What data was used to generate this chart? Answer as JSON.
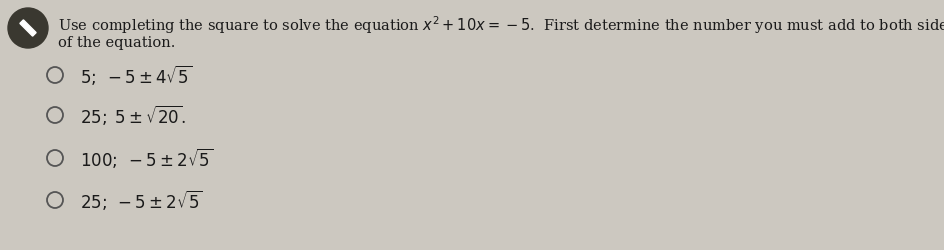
{
  "bg_color": "#ccc8c0",
  "text_color": "#1a1a1a",
  "title_line1": "Use completing the square to solve the equation $x^2 + 10x = -5$.  First determine the number you must add to both sides",
  "title_line2": "of the equation.",
  "options": [
    "$5;\\; -5 \\pm 4\\sqrt{5}$",
    "$25;\\; 5 \\pm \\sqrt{20}$.",
    "$100;\\; -5 \\pm 2\\sqrt{5}$",
    "$25;\\; -5 \\pm 2\\sqrt{5}$"
  ],
  "icon_bg": "#3a3830",
  "icon_slash_color": "#ffffff",
  "option_circle_color": "#555555",
  "figsize": [
    9.44,
    2.5
  ],
  "dpi": 100,
  "title_fontsize": 10.5,
  "option_fontsize": 12
}
